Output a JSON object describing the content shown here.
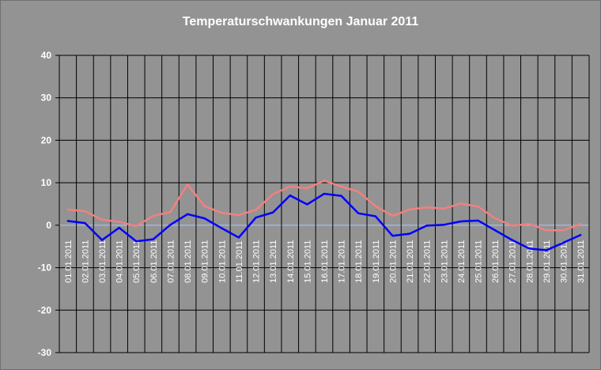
{
  "chart_data": {
    "type": "line",
    "title": "Temperaturschwankungen Januar 2011",
    "xlabel": "",
    "ylabel": "",
    "ylim": [
      -30,
      40
    ],
    "yticks": [
      "40",
      "30",
      "20",
      "10",
      "0",
      "-10",
      "-20",
      "-30"
    ],
    "grid": true,
    "legend": "none",
    "categories": [
      "01.01.2011",
      "02.01.2011",
      "03.01.2011",
      "04.01.2011",
      "05.01.2011",
      "06.01.2011",
      "07.01.2011",
      "08.01.2011",
      "09.01.2011",
      "10.01.2011",
      "11.01.2011",
      "12.01.2011",
      "13.01.2011",
      "14.01.2011",
      "15.01.2011",
      "16.01.2011",
      "17.01.2011",
      "18.01.2011",
      "19.01.2011",
      "20.01.2011",
      "21.01.2011",
      "22.01.2011",
      "23.01.2011",
      "24.01.2011",
      "25.01.2011",
      "26.01.2011",
      "27.01.2011",
      "28.01.2011",
      "29.01.2011",
      "30.01.2011",
      "31.01.2011"
    ],
    "series": [
      {
        "color": "#f28080",
        "values": [
          3.7,
          3.3,
          1.3,
          0.8,
          -0.2,
          2.2,
          3.1,
          9.6,
          4.5,
          2.9,
          2.4,
          3.6,
          7.3,
          9.1,
          8.7,
          10.5,
          9.1,
          7.9,
          4.5,
          2.2,
          3.7,
          4.2,
          3.9,
          5.1,
          4.4,
          1.6,
          -0.1,
          0.3,
          -1.2,
          -1.2,
          0.3
        ]
      },
      {
        "color": "#0000ff",
        "values": [
          1.0,
          0.5,
          -3.5,
          -0.6,
          -3.8,
          -3.3,
          0.1,
          2.6,
          1.6,
          -0.7,
          -2.9,
          1.8,
          3.0,
          7.0,
          4.9,
          7.4,
          6.9,
          2.8,
          2.1,
          -2.5,
          -2.0,
          -0.1,
          0.1,
          0.9,
          1.1,
          -1.2,
          -3.5,
          -5.5,
          -5.9,
          -4.1,
          -2.3
        ]
      }
    ],
    "zero_line_color": "#a8c8ff",
    "background_color": "#939393",
    "grid_color": "#000000"
  }
}
